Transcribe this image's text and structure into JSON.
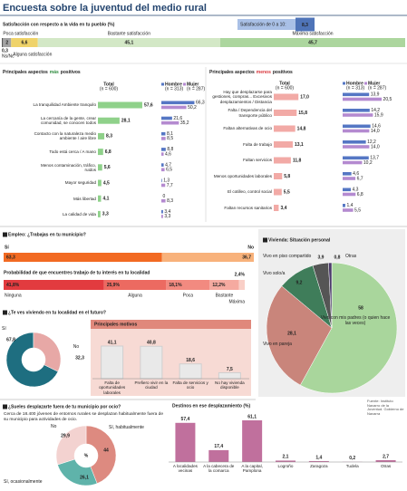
{
  "title": "Encuesta sobre la juventud del medio rural",
  "source": "Fuente: Instituto Navarro de la Juventud. Gobierno de Navarra",
  "chart_data": [
    {
      "type": "stacked-bar",
      "title": "Satisfacción con respecto a la vida en tu pueblo (%)",
      "score_label": "Satisfacción de 0 a 10:",
      "score": {
        "value": 8.3,
        "label": "8,3"
      },
      "series": [
        {
          "name": "Ns/Nc",
          "color": "#5a5a5a",
          "values": [
            0.3
          ],
          "value_labels": [
            "0,3"
          ]
        },
        {
          "name": "Poca satisfacción",
          "color": "#a3a3a3",
          "values": [
            2
          ]
        },
        {
          "name": "Alguna satisfacción",
          "color": "#efd36a",
          "values": [
            6.6
          ],
          "value_labels": [
            "6,6"
          ]
        },
        {
          "name": "Bastante satisfacción",
          "color": "#d3e8c6",
          "values": [
            45.1
          ],
          "value_labels": [
            "45,1"
          ]
        },
        {
          "name": "Máxima satisfacción",
          "color": "#acd69e",
          "values": [
            45.7
          ],
          "value_labels": [
            "45,7"
          ]
        }
      ]
    },
    {
      "type": "hbar",
      "title": [
        "Principales aspectos",
        "más",
        "positivos"
      ],
      "highlight_color": "#2e8b3e",
      "categories": [
        "La tranquilidad Ambiente tranquilo",
        "La cercanía de la gente, crear comunidad, se conocen todos",
        "Contacto con la naturaleza medio ambiente / aire libre",
        "Todo está cerca / A mano",
        "Menos contaminación, tráfico, ruidos",
        "Mayor seguridad",
        "Más libertad",
        "La calidad de vida"
      ],
      "series": [
        {
          "name": "Total",
          "note": "(n = 600)",
          "color": "#8fd18a",
          "values": [
            57.6,
            28.1,
            8.3,
            6.8,
            5.6,
            4.5,
            4.1,
            3.3
          ],
          "value_labels": [
            "57,6",
            "28,1",
            "8,3",
            "6,8",
            "5,6",
            "4,5",
            "4,1",
            "3,3"
          ]
        },
        {
          "name": "Hombre",
          "note": "(n = 313)",
          "color": "#5577c4",
          "values": [
            66.3,
            21.6,
            8.1,
            8.8,
            4.7,
            1.3,
            0,
            3.4
          ],
          "value_labels": [
            "66,3",
            "21,6",
            "8,1",
            "8,8",
            "4,7",
            "1,3",
            "0",
            "3,4"
          ]
        },
        {
          "name": "Mujer",
          "note": "(n = 287)",
          "color": "#b48ad0",
          "values": [
            50.2,
            35.2,
            8.5,
            4.6,
            6.5,
            7.7,
            8.3,
            3.3
          ],
          "value_labels": [
            "50,2",
            "35,2",
            "8,5",
            "4,6",
            "6,5",
            "7,7",
            "8,3",
            "3,3"
          ]
        }
      ]
    },
    {
      "type": "hbar",
      "title": [
        "Principales aspectos",
        "menos",
        "positivos"
      ],
      "highlight_color": "#d8343a",
      "categories": [
        "Hay que desplazarse para gestiones, compras... Excesivos desplazamientos / Distancia",
        "Falta / Dependencia del transporte público",
        "Faltan alternativas de ocio",
        "Falta de trabajo",
        "Faltan servicios",
        "Menos oportunidades laborales",
        "El cotilleo, control social",
        "Faltan recursos sanitarios"
      ],
      "series": [
        {
          "name": "Total",
          "note": "(n = 600)",
          "color": "#f2aaa6",
          "values": [
            17,
            15.8,
            14.8,
            13.1,
            11.8,
            5.8,
            5.5,
            3.4
          ],
          "value_labels": [
            "17,0",
            "15,8",
            "14,8",
            "13,1",
            "11,8",
            "5,8",
            "5,5",
            "3,4"
          ]
        },
        {
          "name": "Hombre",
          "note": "(n = 313)",
          "color": "#5577c4",
          "values": [
            13.9,
            14.2,
            14.6,
            12.2,
            13.7,
            4.6,
            4.3,
            1.4
          ],
          "value_labels": [
            "13,9",
            "14,2",
            "14,6",
            "12,2",
            "13,7",
            "4,6",
            "4,3",
            "1,4"
          ]
        },
        {
          "name": "Mujer",
          "note": "(n = 287)",
          "color": "#b48ad0",
          "values": [
            20.5,
            15.9,
            14,
            14,
            10.2,
            6.7,
            6.8,
            5.5
          ],
          "value_labels": [
            "20,5",
            "15,9",
            "14,0",
            "14,0",
            "10,2",
            "6,7",
            "6,8",
            "5,5"
          ]
        }
      ]
    },
    {
      "type": "stacked-bar",
      "title": "Empleo: ¿Trabajas en tu municipio?",
      "series": [
        {
          "name": "Sí",
          "color": "#f26a22",
          "values": [
            63.3
          ],
          "value_labels": [
            "63,3"
          ]
        },
        {
          "name": "No",
          "color": "#f8b27b",
          "values": [
            36.7
          ],
          "value_labels": [
            "36,7"
          ]
        }
      ]
    },
    {
      "type": "stacked-bar",
      "title": "Probabilidad de que encuentres trabajo de tu interés en tu localidad",
      "series": [
        {
          "name": "Ninguna",
          "color": "#e23b3f",
          "values": [
            41.8
          ],
          "value_labels": [
            "41,8%"
          ]
        },
        {
          "name": "Alguna",
          "color": "#ec6a61",
          "values": [
            25.9
          ],
          "value_labels": [
            "25,9%"
          ]
        },
        {
          "name": "Poca",
          "color": "#f28a80",
          "values": [
            18.1
          ],
          "value_labels": [
            "18,1%"
          ]
        },
        {
          "name": "Bastante",
          "color": "#f5aaa0",
          "values": [
            12.2
          ],
          "value_labels": [
            "12,2%"
          ]
        },
        {
          "name": "Máxima",
          "color": "#f9cfc7",
          "values": [
            2.4
          ],
          "value_labels": [
            "2,4%"
          ]
        }
      ]
    },
    {
      "type": "pie",
      "title": "Vivienda: Situación personal",
      "categories": [
        "Vivo con mis padres (o quien hace las veces)",
        "Vivo en pareja",
        "Vivo solo/a",
        "Vivo en piso compartido",
        "Otras"
      ],
      "values": [
        58,
        28.1,
        9.2,
        3.9,
        0.8
      ],
      "value_labels": [
        "58",
        "28,1",
        "9,2",
        "3,9",
        "0,8"
      ],
      "colors": [
        "#a9d69c",
        "#c9857b",
        "#3f7d5a",
        "#555555",
        "#4a3a6a"
      ]
    },
    {
      "type": "donut",
      "title": "¿Te ves viviendo en tu localidad en el futuro?",
      "categories": [
        "Sí",
        "No"
      ],
      "values": [
        67.8,
        32.3
      ],
      "value_labels": [
        "67,8",
        "32,3"
      ],
      "colors": [
        "#1e6e80",
        "#e7a8a6"
      ]
    },
    {
      "type": "bar",
      "title": "Principales motivos",
      "color": "#e9e9e9",
      "categories": [
        "Falta de oportunidades laborales",
        "Prefiero vivir en la ciudad",
        "Falta de servicios y ocio",
        "No hay vivienda disponible"
      ],
      "values": [
        41.1,
        40.8,
        18.6,
        7.5
      ],
      "value_labels": [
        "41,1",
        "40,8",
        "18,6",
        "7,5"
      ]
    },
    {
      "type": "donut",
      "title": "¿Sueles desplazarte fuera de tu municipio por ocio?",
      "subtitle": "Cerca de 18.400 jóvenes de entornos rurales se desplazan habitualmente fuera de su municipio para actividades de ocio.",
      "center_label": "%",
      "categories": [
        "Sí, habitualmente",
        "Sí, ocasionalmente",
        "No"
      ],
      "values": [
        44,
        26.1,
        29.9
      ],
      "value_labels": [
        "44",
        "26,1",
        "29,9"
      ],
      "colors": [
        "#dd8a80",
        "#5fb3aa",
        "#f3d2d0"
      ]
    },
    {
      "type": "bar",
      "title": "Destinos en ese desplazamiento (%)",
      "color": "#c0709d",
      "categories": [
        "A localidades vecinas",
        "A la cabecera de la comarca",
        "A la capital, Pamplona",
        "Logroño",
        "Zaragoza",
        "Tudela",
        "Otras"
      ],
      "values": [
        57.4,
        17.4,
        61.1,
        2.1,
        1.4,
        0.2,
        2.7
      ],
      "value_labels": [
        "57,4",
        "17,4",
        "61,1",
        "2,1",
        "1,4",
        "0,2",
        "2,7"
      ]
    }
  ]
}
